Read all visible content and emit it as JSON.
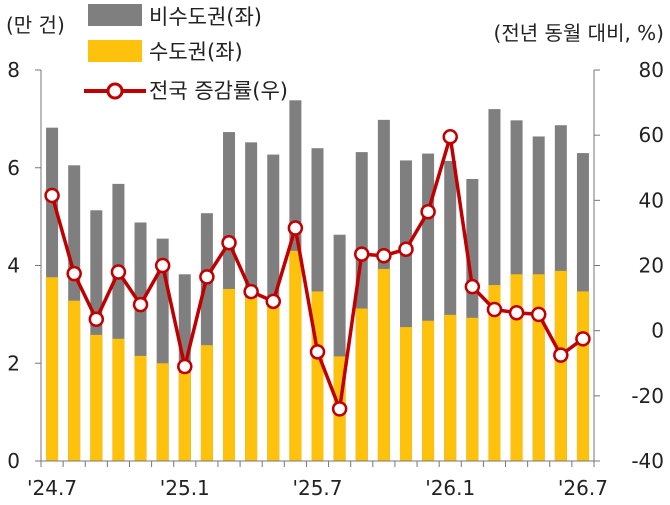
{
  "chart_data": {
    "type": "bar",
    "colors": {
      "bar_non_capital": "#7f7f7f",
      "bar_capital": "#fec10c",
      "line": "#c00000",
      "axis": "#777777"
    },
    "left_axis": {
      "unit_label": "(만 건)",
      "ylim": [
        0,
        8
      ],
      "ticks": [
        "0",
        "2",
        "4",
        "6",
        "8"
      ]
    },
    "right_axis": {
      "unit_label": "(전년 동월 대비, %)",
      "ylim": [
        -40,
        80
      ],
      "ticks": [
        "-40",
        "-20",
        "0",
        "20",
        "40",
        "60",
        "80"
      ]
    },
    "x_tick_labels": [
      {
        "index": 0,
        "label": "'24.7"
      },
      {
        "index": 6,
        "label": "'25.1"
      },
      {
        "index": 12,
        "label": "'25.7"
      },
      {
        "index": 18,
        "label": "'26.1"
      },
      {
        "index": 24,
        "label": "'26.7"
      }
    ],
    "categories": [
      "'24.7",
      "'24.8",
      "'24.9",
      "'24.10",
      "'24.11",
      "'24.12",
      "'25.1",
      "'25.2",
      "'25.3",
      "'25.4",
      "'25.5",
      "'25.6",
      "'25.7",
      "'25.8",
      "'25.9",
      "'25.10",
      "'25.11",
      "'25.12",
      "'26.1",
      "'26.2",
      "'26.3",
      "'26.4",
      "'26.5",
      "'26.6",
      "'26.7"
    ],
    "series": [
      {
        "name": "비수도권(좌)",
        "role": "total_stack_top",
        "axis": "left",
        "values": [
          6.82,
          6.05,
          5.13,
          5.67,
          4.88,
          4.55,
          3.82,
          5.07,
          6.73,
          6.52,
          6.27,
          7.38,
          6.4,
          4.63,
          6.32,
          6.98,
          6.15,
          6.29,
          6.14,
          5.77,
          7.2,
          6.97,
          6.64,
          6.87,
          6.3
        ]
      },
      {
        "name": "수도권(좌)",
        "role": "stack_bottom",
        "axis": "left",
        "values": [
          3.76,
          3.28,
          2.58,
          2.5,
          2.15,
          2.0,
          1.8,
          2.37,
          3.52,
          3.34,
          3.25,
          4.3,
          3.47,
          2.14,
          3.12,
          3.93,
          2.74,
          2.87,
          2.99,
          2.93,
          3.6,
          3.82,
          3.82,
          3.89,
          3.47
        ]
      },
      {
        "name": "전국 증감률(우)",
        "role": "line",
        "axis": "right",
        "values": [
          41.5,
          17.5,
          3.5,
          18,
          8,
          20,
          -11,
          16.5,
          27,
          12,
          9,
          31.5,
          -6.5,
          -24,
          23.5,
          23,
          25,
          36.5,
          59.5,
          13.5,
          6.5,
          5.5,
          5,
          -7.5,
          -2.5
        ]
      }
    ]
  }
}
